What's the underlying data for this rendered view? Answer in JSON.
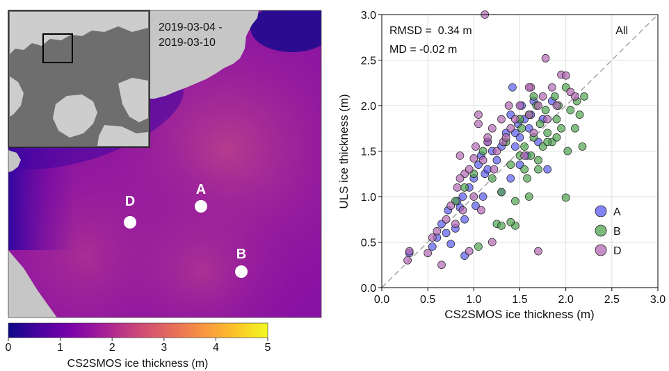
{
  "map_panel": {
    "date_range_line1": "2019-03-04 -",
    "date_range_line2": "2019-03-10",
    "stations": [
      {
        "label": "A"
      },
      {
        "label": "B"
      },
      {
        "label": "D"
      }
    ],
    "colorbar": {
      "label": "CS2SMOS ice thickness (m)",
      "ticks": [
        "0",
        "1",
        "2",
        "3",
        "4",
        "5"
      ],
      "min": 0,
      "max": 5,
      "colormap": "plasma"
    },
    "colors": {
      "land": "#c6c6c6",
      "inset_ocean": "#6e6e6e",
      "inset_land": "#cdcdcd",
      "station_marker": "#ffffff"
    }
  },
  "chart_data": {
    "type": "scatter",
    "xlabel": "CS2SMOS ice thickness (m)",
    "ylabel": "ULS ice thickness (m)",
    "xlim": [
      0,
      3
    ],
    "ylim": [
      0,
      3
    ],
    "xticks": [
      "0.0",
      "0.5",
      "1.0",
      "1.5",
      "2.0",
      "2.5",
      "3.0"
    ],
    "yticks": [
      "0.0",
      "0.5",
      "1.0",
      "1.5",
      "2.0",
      "2.5",
      "3.0"
    ],
    "grid": true,
    "one_to_one_line": true,
    "stats": {
      "rmsd": "RMSD =  0.34 m",
      "md": "MD = -0.02 m",
      "subset": "All"
    },
    "legend_position": "lower-right",
    "series": [
      {
        "name": "A",
        "color": "#5a5aef",
        "x": [
          0.3,
          0.55,
          0.6,
          0.65,
          0.7,
          0.72,
          0.75,
          0.8,
          0.82,
          0.85,
          0.88,
          0.9,
          0.95,
          1.0,
          1.02,
          1.05,
          1.08,
          1.1,
          1.12,
          1.15,
          1.2,
          1.25,
          1.3,
          1.35,
          1.4,
          1.42,
          1.45,
          1.48,
          1.5,
          1.5,
          1.52,
          1.55,
          1.58,
          1.6,
          1.62,
          1.65,
          1.7,
          1.75,
          1.8,
          1.85,
          1.4,
          1.45,
          1.3,
          0.9,
          1.15
        ],
        "y": [
          0.38,
          0.45,
          0.55,
          0.7,
          0.6,
          0.85,
          0.48,
          0.65,
          0.95,
          0.88,
          1.0,
          0.75,
          1.1,
          1.2,
          0.9,
          1.35,
          1.45,
          1.0,
          1.25,
          1.6,
          1.5,
          1.4,
          1.55,
          1.7,
          1.9,
          2.2,
          1.55,
          1.8,
          1.65,
          1.35,
          2.0,
          1.85,
          1.45,
          1.75,
          1.9,
          2.05,
          1.6,
          1.85,
          1.3,
          2.05,
          1.2,
          1.7,
          1.05,
          0.35,
          1.3
        ]
      },
      {
        "name": "B",
        "color": "#4fa34f",
        "x": [
          0.8,
          0.9,
          1.0,
          1.05,
          1.1,
          1.2,
          1.25,
          1.3,
          1.35,
          1.4,
          1.45,
          1.5,
          1.52,
          1.55,
          1.58,
          1.6,
          1.62,
          1.65,
          1.68,
          1.7,
          1.72,
          1.75,
          1.78,
          1.8,
          1.85,
          1.88,
          1.9,
          1.92,
          1.95,
          2.0,
          2.02,
          2.05,
          2.1,
          2.12,
          2.15,
          2.18,
          2.2,
          1.5,
          1.6,
          1.7,
          1.8,
          1.4,
          1.45,
          1.3,
          2.0,
          1.9,
          1.55,
          1.65
        ],
        "y": [
          0.95,
          1.1,
          1.25,
          0.45,
          1.5,
          1.2,
          0.7,
          1.05,
          1.6,
          1.35,
          0.68,
          1.45,
          1.75,
          1.55,
          1.2,
          1.9,
          1.45,
          1.65,
          2.0,
          1.3,
          1.8,
          1.55,
          1.95,
          1.7,
          1.6,
          2.1,
          1.85,
          2.0,
          1.75,
          2.2,
          1.5,
          1.95,
          1.75,
          2.05,
          1.9,
          1.55,
          2.1,
          1.85,
          1.0,
          1.4,
          1.6,
          0.72,
          0.95,
          0.68,
          0.99,
          1.65,
          1.3,
          2.1
        ]
      },
      {
        "name": "D",
        "color": "#b267b2",
        "x": [
          0.28,
          0.3,
          0.5,
          0.55,
          0.6,
          0.65,
          0.7,
          0.75,
          0.8,
          0.82,
          0.85,
          0.88,
          0.9,
          0.95,
          1.0,
          1.02,
          1.05,
          1.08,
          1.1,
          1.12,
          1.15,
          1.2,
          1.22,
          1.25,
          1.3,
          1.32,
          1.35,
          1.38,
          1.4,
          1.45,
          1.5,
          1.55,
          1.6,
          1.62,
          1.65,
          1.7,
          1.75,
          1.78,
          1.8,
          1.85,
          1.9,
          1.95,
          2.0,
          2.05,
          2.1,
          0.85,
          1.0,
          1.15,
          0.95,
          1.2,
          1.6,
          1.7,
          1.05
        ],
        "y": [
          0.3,
          0.4,
          0.38,
          0.55,
          0.62,
          0.25,
          0.75,
          0.9,
          0.7,
          1.1,
          1.45,
          0.85,
          1.25,
          1.3,
          1.0,
          1.55,
          1.9,
          0.85,
          1.4,
          3.0,
          1.6,
          1.75,
          1.3,
          1.5,
          1.85,
          1.6,
          1.65,
          2.0,
          1.75,
          1.85,
          2.0,
          1.45,
          1.9,
          2.2,
          1.7,
          2.0,
          2.1,
          2.52,
          1.85,
          2.2,
          2.0,
          2.34,
          2.33,
          2.15,
          2.1,
          1.2,
          1.42,
          1.65,
          0.4,
          0.5,
          2.2,
          0.4,
          1.8
        ]
      }
    ]
  }
}
